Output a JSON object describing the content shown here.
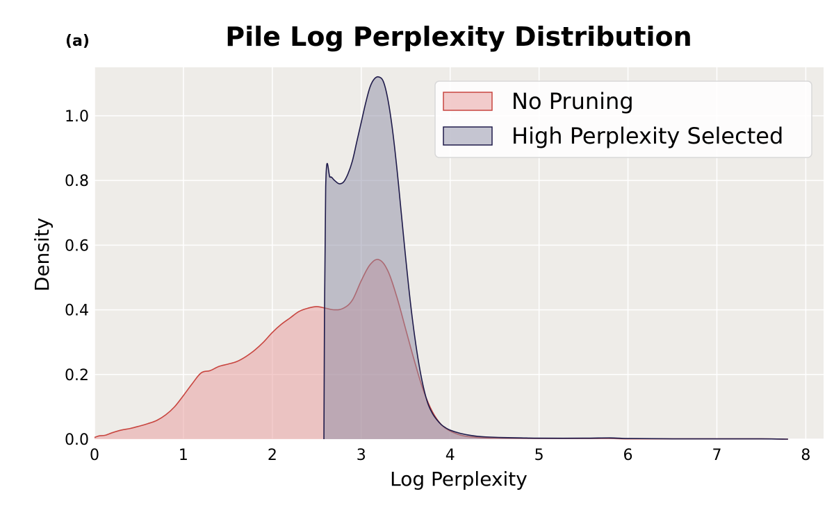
{
  "chart_data": {
    "type": "area",
    "panel_label": "(a)",
    "title": "Pile Log Perplexity Distribution",
    "xlabel": "Log Perplexity",
    "ylabel": "Density",
    "xlim": [
      0,
      8.2
    ],
    "ylim": [
      0,
      1.15
    ],
    "xticks": [
      "0",
      "1",
      "2",
      "3",
      "4",
      "5",
      "6",
      "7",
      "8"
    ],
    "yticks": [
      "0.0",
      "0.2",
      "0.4",
      "0.6",
      "0.8",
      "1.0"
    ],
    "grid": true,
    "legend": "top-right",
    "colors": {
      "background": "#eeece8",
      "grid": "#ffffff",
      "no_pruning_fill": "#e9a3a3",
      "no_pruning_line": "#c8453f",
      "high_ppl_fill": "#8e8ea6",
      "high_ppl_line": "#1e1a4a"
    },
    "series": [
      {
        "name": "No Pruning",
        "x": [
          0.0,
          0.05,
          0.12,
          0.2,
          0.3,
          0.4,
          0.5,
          0.6,
          0.7,
          0.8,
          0.9,
          1.0,
          1.1,
          1.2,
          1.3,
          1.4,
          1.5,
          1.6,
          1.7,
          1.8,
          1.9,
          2.0,
          2.1,
          2.2,
          2.3,
          2.4,
          2.5,
          2.6,
          2.7,
          2.8,
          2.9,
          3.0,
          3.1,
          3.2,
          3.3,
          3.4,
          3.5,
          3.6,
          3.7,
          3.8,
          3.9,
          4.0,
          4.1,
          4.2,
          4.4,
          4.6,
          5.0,
          5.5,
          5.8,
          6.0,
          6.5,
          7.0,
          7.5,
          7.8
        ],
        "y": [
          0.005,
          0.01,
          0.012,
          0.02,
          0.028,
          0.033,
          0.04,
          0.048,
          0.058,
          0.075,
          0.1,
          0.135,
          0.172,
          0.205,
          0.212,
          0.225,
          0.232,
          0.24,
          0.255,
          0.275,
          0.3,
          0.33,
          0.355,
          0.375,
          0.395,
          0.405,
          0.41,
          0.405,
          0.4,
          0.405,
          0.43,
          0.49,
          0.54,
          0.555,
          0.52,
          0.44,
          0.34,
          0.24,
          0.15,
          0.085,
          0.045,
          0.025,
          0.014,
          0.008,
          0.004,
          0.003,
          0.002,
          0.002,
          0.002,
          0.001,
          0.001,
          0.001,
          0.001,
          0.0
        ]
      },
      {
        "name": "High Perplexity Selected",
        "x": [
          2.58,
          2.6,
          2.65,
          2.7,
          2.75,
          2.8,
          2.85,
          2.9,
          2.95,
          3.0,
          3.05,
          3.1,
          3.15,
          3.2,
          3.25,
          3.3,
          3.35,
          3.4,
          3.45,
          3.5,
          3.55,
          3.6,
          3.65,
          3.7,
          3.75,
          3.8,
          3.85,
          3.9,
          3.95,
          4.0,
          4.1,
          4.2,
          4.3,
          4.4,
          4.6,
          4.8,
          5.0,
          5.5,
          5.8,
          6.0,
          6.5,
          7.0,
          7.5,
          7.8
        ],
        "y": [
          0.0,
          0.78,
          0.81,
          0.8,
          0.79,
          0.795,
          0.82,
          0.86,
          0.92,
          0.98,
          1.04,
          1.09,
          1.115,
          1.12,
          1.105,
          1.05,
          0.96,
          0.84,
          0.7,
          0.56,
          0.43,
          0.32,
          0.23,
          0.16,
          0.11,
          0.08,
          0.06,
          0.045,
          0.035,
          0.028,
          0.019,
          0.013,
          0.009,
          0.007,
          0.005,
          0.004,
          0.003,
          0.003,
          0.004,
          0.002,
          0.001,
          0.001,
          0.001,
          0.0
        ]
      }
    ]
  }
}
